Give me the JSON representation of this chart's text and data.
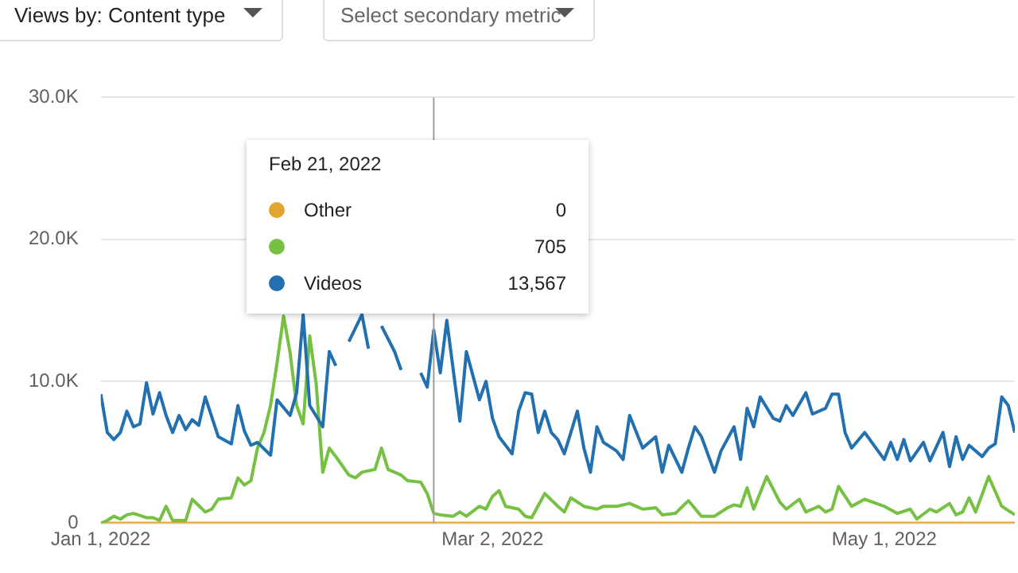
{
  "chart_data": {
    "type": "line",
    "title": "Views by: Content type",
    "subtitle": "Select secondary metric",
    "xlim": [
      "2022-01-01",
      "2022-05-21"
    ],
    "xticks": [
      {
        "value": "2022-01-01",
        "label": "Jan 1, 2022"
      },
      {
        "value": "2022-03-02",
        "label": "Mar 2, 2022"
      },
      {
        "value": "2022-05-01",
        "label": "May 1, 2022"
      }
    ],
    "ylim": [
      0,
      30000
    ],
    "yticks": [
      0,
      {
        "value": 10000,
        "label": "10.0K"
      },
      {
        "value": 20000,
        "label": "20.0K"
      },
      {
        "value": 30000,
        "label": "30.0K"
      }
    ],
    "grid": "y",
    "legend": "top left",
    "marker": "none",
    "line_style": "solid",
    "ref_lines": [
      {
        "axis": "x",
        "value": "2022-02-21",
        "color": "#9e9e9e"
      }
    ],
    "annotations": [
      "Feb 21, 2022",
      "0",
      "705",
      "13,567"
    ],
    "series": [
      {
        "name": "Other",
        "color": "#e0a62e",
        "x": [
          "2022-01-01",
          "2022-05-21"
        ],
        "values": [
          0,
          0
        ]
      },
      {
        "color": "#76c043",
        "x": [
          "2022-01-01",
          "2022-01-02",
          "2022-01-03",
          "2022-01-04",
          "2022-01-05",
          "2022-01-06",
          "2022-01-08",
          "2022-01-09",
          "2022-01-10",
          "2022-01-11",
          "2022-01-12",
          "2022-01-14",
          "2022-01-15",
          "2022-01-17",
          "2022-01-18",
          "2022-01-19",
          "2022-01-21",
          "2022-01-22",
          "2022-01-23",
          "2022-01-24",
          "2022-01-25",
          "2022-01-26",
          "2022-01-27",
          "2022-01-28",
          "2022-01-29",
          "2022-01-30",
          "2022-01-31",
          "2022-02-01",
          "2022-02-02",
          "2022-02-03",
          "2022-02-04",
          "2022-02-05",
          "2022-02-06",
          "2022-02-08",
          "2022-02-09",
          "2022-02-10",
          "2022-02-12",
          "2022-02-13",
          "2022-02-14",
          "2022-02-15",
          "2022-02-16",
          "2022-02-17",
          "2022-02-19",
          "2022-02-20",
          "2022-02-21",
          "2022-02-22",
          "2022-02-24",
          "2022-02-25",
          "2022-02-26",
          "2022-02-28",
          "2022-03-01",
          "2022-03-02",
          "2022-03-03",
          "2022-03-04",
          "2022-03-06",
          "2022-03-07",
          "2022-03-08",
          "2022-03-10",
          "2022-03-12",
          "2022-03-13",
          "2022-03-14",
          "2022-03-16",
          "2022-03-18",
          "2022-03-19",
          "2022-03-21",
          "2022-03-23",
          "2022-03-25",
          "2022-03-27",
          "2022-03-28",
          "2022-03-30",
          "2022-04-01",
          "2022-04-03",
          "2022-04-05",
          "2022-04-07",
          "2022-04-08",
          "2022-04-09",
          "2022-04-10",
          "2022-04-11",
          "2022-04-13",
          "2022-04-15",
          "2022-04-16",
          "2022-04-18",
          "2022-04-19",
          "2022-04-21",
          "2022-04-22",
          "2022-04-23",
          "2022-04-24",
          "2022-04-26",
          "2022-04-28",
          "2022-05-01",
          "2022-05-03",
          "2022-05-05",
          "2022-05-06",
          "2022-05-08",
          "2022-05-09",
          "2022-05-11",
          "2022-05-12",
          "2022-05-13",
          "2022-05-14",
          "2022-05-15",
          "2022-05-17",
          "2022-05-19",
          "2022-05-21"
        ],
        "values": [
          0,
          200,
          500,
          300,
          600,
          700,
          400,
          400,
          200,
          1200,
          200,
          200,
          1700,
          800,
          1000,
          1700,
          1800,
          3200,
          2700,
          3000,
          5300,
          6400,
          8300,
          11300,
          14600,
          12000,
          8300,
          7000,
          13200,
          9800,
          3600,
          5300,
          4700,
          3400,
          3200,
          3600,
          3800,
          5300,
          3800,
          3600,
          3400,
          3000,
          2900,
          2100,
          700,
          600,
          500,
          800,
          500,
          1200,
          1000,
          1900,
          2300,
          1200,
          1000,
          500,
          400,
          2100,
          1200,
          800,
          1800,
          1200,
          1000,
          1200,
          1200,
          1400,
          1000,
          1100,
          600,
          700,
          1600,
          500,
          500,
          1100,
          1300,
          1200,
          2500,
          1000,
          3300,
          1500,
          1000,
          1700,
          800,
          1200,
          800,
          1000,
          2600,
          1200,
          1700,
          1200,
          700,
          1000,
          300,
          1000,
          800,
          1400,
          600,
          800,
          1800,
          800,
          3300,
          1200,
          600
        ]
      },
      {
        "name": "Videos",
        "color": "#2270b0",
        "x": [
          "2022-01-01",
          "2022-01-02",
          "2022-01-03",
          "2022-01-04",
          "2022-01-05",
          "2022-01-06",
          "2022-01-07",
          "2022-01-08",
          "2022-01-09",
          "2022-01-10",
          "2022-01-11",
          "2022-01-12",
          "2022-01-13",
          "2022-01-14",
          "2022-01-15",
          "2022-01-16",
          "2022-01-17",
          "2022-01-19",
          "2022-01-21",
          "2022-01-22",
          "2022-01-23",
          "2022-01-24",
          "2022-01-25",
          "2022-01-27",
          "2022-01-28",
          "2022-01-30",
          "2022-01-31",
          "2022-02-01",
          "2022-02-02",
          "2022-02-04",
          "2022-02-05",
          "2022-02-06",
          "2022-02-07",
          "2022-02-08",
          "2022-02-10",
          "2022-02-11",
          "2022-02-12",
          "2022-02-13",
          "2022-02-15",
          "2022-02-16",
          "2022-02-17",
          "2022-02-19",
          "2022-02-20",
          "2022-02-21",
          "2022-02-22",
          "2022-02-23",
          "2022-02-25",
          "2022-02-26",
          "2022-02-28",
          "2022-03-01",
          "2022-03-02",
          "2022-03-03",
          "2022-03-05",
          "2022-03-06",
          "2022-03-07",
          "2022-03-08",
          "2022-03-09",
          "2022-03-10",
          "2022-03-11",
          "2022-03-12",
          "2022-03-13",
          "2022-03-15",
          "2022-03-16",
          "2022-03-17",
          "2022-03-18",
          "2022-03-19",
          "2022-03-21",
          "2022-03-22",
          "2022-03-23",
          "2022-03-25",
          "2022-03-27",
          "2022-03-28",
          "2022-03-29",
          "2022-03-31",
          "2022-04-01",
          "2022-04-02",
          "2022-04-03",
          "2022-04-05",
          "2022-04-06",
          "2022-04-08",
          "2022-04-09",
          "2022-04-10",
          "2022-04-11",
          "2022-04-12",
          "2022-04-14",
          "2022-04-15",
          "2022-04-16",
          "2022-04-17",
          "2022-04-19",
          "2022-04-20",
          "2022-04-22",
          "2022-04-23",
          "2022-04-24",
          "2022-04-25",
          "2022-04-26",
          "2022-04-28",
          "2022-05-01",
          "2022-05-02",
          "2022-05-03",
          "2022-05-04",
          "2022-05-05",
          "2022-05-07",
          "2022-05-08",
          "2022-05-10",
          "2022-05-11",
          "2022-05-12",
          "2022-05-13",
          "2022-05-14",
          "2022-05-16",
          "2022-05-17",
          "2022-05-18",
          "2022-05-19",
          "2022-05-20",
          "2022-05-21"
        ],
        "values": [
          9100,
          6400,
          5900,
          6400,
          7900,
          6800,
          7000,
          9900,
          7700,
          9200,
          7600,
          6400,
          7600,
          6600,
          7300,
          6900,
          8900,
          6100,
          5600,
          8300,
          6500,
          5500,
          5700,
          4800,
          8700,
          7600,
          9200,
          14700,
          8300,
          6800,
          12100,
          11100,
          null,
          12800,
          14700,
          12300,
          null,
          13900,
          12100,
          10800,
          null,
          10600,
          9600,
          13600,
          10600,
          14300,
          7200,
          12100,
          8700,
          10000,
          7400,
          6100,
          4900,
          7900,
          9200,
          9100,
          6400,
          7900,
          6400,
          5900,
          4900,
          7900,
          5300,
          3600,
          6800,
          5700,
          5100,
          4500,
          7600,
          5300,
          6100,
          3600,
          5500,
          3600,
          5300,
          6800,
          6100,
          3600,
          5100,
          6800,
          4500,
          8100,
          6800,
          8900,
          7400,
          7200,
          8300,
          7600,
          9200,
          7700,
          8100,
          9100,
          9100,
          6400,
          5300,
          6400,
          4500,
          5700,
          4500,
          5900,
          4400,
          5700,
          4400,
          6400,
          4000,
          6100,
          4500,
          5500,
          4700,
          5300,
          5600,
          8900,
          8300,
          6400
        ]
      }
    ]
  }
}
